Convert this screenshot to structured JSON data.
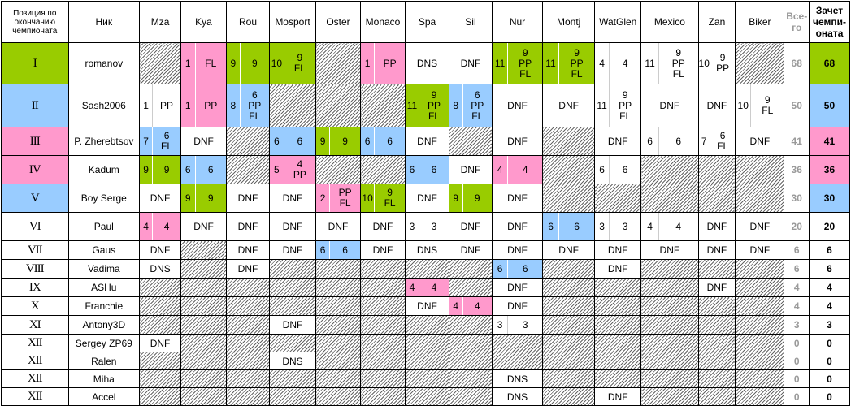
{
  "headers": {
    "position": "Позиция по окончанию чемпионата",
    "nick": "Ник",
    "tracks": [
      "Mza",
      "Kya",
      "Rou",
      "Mosport",
      "Oster",
      "Monaco",
      "Spa",
      "Sil",
      "Nur",
      "Montj",
      "WatGlen",
      "Mexico",
      "Zan",
      "Biker"
    ],
    "total": "Все-го",
    "championship": "Зачет чемпи-оната"
  },
  "colors": {
    "green": "#99cc00",
    "pink": "#ff99cc",
    "blue": "#99ccff",
    "hatch": "#666666"
  },
  "rows": [
    {
      "pos": "I",
      "nick": "romanov",
      "rowColor": "green",
      "total": "68",
      "score": "68",
      "cells": [
        {
          "t": "h"
        },
        {
          "t": "p",
          "a": "1",
          "b": "FL",
          "c": "pink"
        },
        {
          "t": "p",
          "a": "9",
          "b": "9",
          "c": "green"
        },
        {
          "t": "p",
          "a": "10",
          "b": "9\nFL",
          "c": "green"
        },
        {
          "t": "h"
        },
        {
          "t": "p",
          "a": "1",
          "b": "PP",
          "c": "pink"
        },
        {
          "t": "s",
          "v": "DNS"
        },
        {
          "t": "s",
          "v": "DNF"
        },
        {
          "t": "p",
          "a": "11",
          "b": "9\nPP\nFL",
          "c": "green"
        },
        {
          "t": "p",
          "a": "11",
          "b": "9\nPP\nFL",
          "c": "green"
        },
        {
          "t": "p",
          "a": "4",
          "b": "4"
        },
        {
          "t": "p",
          "a": "11",
          "b": "9\nPP\nFL"
        },
        {
          "t": "p",
          "a": "10",
          "b": "9\nPP"
        },
        {
          "t": "h"
        }
      ]
    },
    {
      "pos": "II",
      "nick": "Sash2006",
      "rowColor": "blue",
      "total": "50",
      "score": "50",
      "cells": [
        {
          "t": "p",
          "a": "1",
          "b": "PP"
        },
        {
          "t": "p",
          "a": "1",
          "b": "PP",
          "c": "pink"
        },
        {
          "t": "p",
          "a": "8",
          "b": "6\nPP\nFL",
          "c": "blue"
        },
        {
          "t": "h"
        },
        {
          "t": "h"
        },
        {
          "t": "h"
        },
        {
          "t": "p",
          "a": "11",
          "b": "9\nPP\nFL",
          "c": "green"
        },
        {
          "t": "p",
          "a": "8",
          "b": "6\nPP\nFL",
          "c": "blue"
        },
        {
          "t": "s",
          "v": "DNF"
        },
        {
          "t": "s",
          "v": "DNF"
        },
        {
          "t": "p",
          "a": "11",
          "b": "9\nPP\nFL"
        },
        {
          "t": "s",
          "v": "DNF"
        },
        {
          "t": "s",
          "v": "DNF"
        },
        {
          "t": "p",
          "a": "10",
          "b": "9\nFL"
        }
      ]
    },
    {
      "pos": "III",
      "nick": "P. Zherebtsov",
      "rowColor": "pink",
      "total": "41",
      "score": "41",
      "cells": [
        {
          "t": "p",
          "a": "7",
          "b": "6\nFL",
          "c": "blue"
        },
        {
          "t": "s",
          "v": "DNF"
        },
        {
          "t": "h"
        },
        {
          "t": "p",
          "a": "6",
          "b": "6",
          "c": "blue"
        },
        {
          "t": "p",
          "a": "9",
          "b": "9",
          "c": "green"
        },
        {
          "t": "p",
          "a": "6",
          "b": "6",
          "c": "blue"
        },
        {
          "t": "s",
          "v": "DNF"
        },
        {
          "t": "h"
        },
        {
          "t": "s",
          "v": "DNF"
        },
        {
          "t": "h"
        },
        {
          "t": "s",
          "v": "DNF"
        },
        {
          "t": "p",
          "a": "6",
          "b": "6"
        },
        {
          "t": "p",
          "a": "7",
          "b": "6\nFL"
        },
        {
          "t": "s",
          "v": "DNF"
        }
      ]
    },
    {
      "pos": "IV",
      "nick": "Kadum",
      "rowColor": "pink",
      "total": "36",
      "score": "36",
      "cells": [
        {
          "t": "p",
          "a": "9",
          "b": "9",
          "c": "green"
        },
        {
          "t": "p",
          "a": "6",
          "b": "6",
          "c": "blue"
        },
        {
          "t": "h"
        },
        {
          "t": "p",
          "a": "5",
          "b": "4\nPP",
          "c": "pink"
        },
        {
          "t": "h"
        },
        {
          "t": "h"
        },
        {
          "t": "p",
          "a": "6",
          "b": "6",
          "c": "blue"
        },
        {
          "t": "s",
          "v": "DNF"
        },
        {
          "t": "p",
          "a": "4",
          "b": "4",
          "c": "pink"
        },
        {
          "t": "h"
        },
        {
          "t": "p",
          "a": "6",
          "b": "6"
        },
        {
          "t": "h"
        },
        {
          "t": "h"
        },
        {
          "t": "h"
        }
      ]
    },
    {
      "pos": "V",
      "nick": "Boy Serge",
      "rowColor": "blue",
      "total": "30",
      "score": "30",
      "cells": [
        {
          "t": "s",
          "v": "DNF"
        },
        {
          "t": "p",
          "a": "9",
          "b": "9",
          "c": "green"
        },
        {
          "t": "s",
          "v": "DNF"
        },
        {
          "t": "s",
          "v": "DNF"
        },
        {
          "t": "p",
          "a": "2",
          "b": "PP\nFL",
          "c": "pink"
        },
        {
          "t": "p",
          "a": "10",
          "b": "9\nFL",
          "c": "green"
        },
        {
          "t": "s",
          "v": "DNF"
        },
        {
          "t": "p",
          "a": "9",
          "b": "9",
          "c": "green"
        },
        {
          "t": "s",
          "v": "DNF"
        },
        {
          "t": "h"
        },
        {
          "t": "h"
        },
        {
          "t": "h"
        },
        {
          "t": "h"
        },
        {
          "t": "h"
        }
      ]
    },
    {
      "pos": "VI",
      "nick": "Paul",
      "rowColor": "",
      "total": "20",
      "score": "20",
      "cells": [
        {
          "t": "p",
          "a": "4",
          "b": "4",
          "c": "pink"
        },
        {
          "t": "s",
          "v": "DNF"
        },
        {
          "t": "s",
          "v": "DNF"
        },
        {
          "t": "s",
          "v": "DNF"
        },
        {
          "t": "s",
          "v": "DNF"
        },
        {
          "t": "s",
          "v": "DNF"
        },
        {
          "t": "p",
          "a": "3",
          "b": "3"
        },
        {
          "t": "s",
          "v": "DNF"
        },
        {
          "t": "s",
          "v": "DNF"
        },
        {
          "t": "p",
          "a": "6",
          "b": "6",
          "c": "blue"
        },
        {
          "t": "p",
          "a": "3",
          "b": "3"
        },
        {
          "t": "p",
          "a": "4",
          "b": "4"
        },
        {
          "t": "s",
          "v": "DNF"
        },
        {
          "t": "s",
          "v": "DNF"
        }
      ]
    },
    {
      "pos": "VII",
      "nick": "Gaus",
      "rowColor": "",
      "total": "6",
      "score": "6",
      "cells": [
        {
          "t": "s",
          "v": "DNF"
        },
        {
          "t": "h"
        },
        {
          "t": "s",
          "v": "DNF"
        },
        {
          "t": "s",
          "v": "DNF"
        },
        {
          "t": "p",
          "a": "6",
          "b": "6",
          "c": "blue"
        },
        {
          "t": "s",
          "v": "DNF"
        },
        {
          "t": "s",
          "v": "DNS"
        },
        {
          "t": "s",
          "v": "DNF"
        },
        {
          "t": "s",
          "v": "DNF"
        },
        {
          "t": "s",
          "v": "DNF"
        },
        {
          "t": "s",
          "v": "DNF"
        },
        {
          "t": "s",
          "v": "DNF"
        },
        {
          "t": "s",
          "v": "DNF"
        },
        {
          "t": "s",
          "v": "DNF"
        }
      ]
    },
    {
      "pos": "VIII",
      "nick": "Vadima",
      "rowColor": "",
      "total": "6",
      "score": "6",
      "cells": [
        {
          "t": "s",
          "v": "DNS"
        },
        {
          "t": "h"
        },
        {
          "t": "s",
          "v": "DNF"
        },
        {
          "t": "h"
        },
        {
          "t": "h"
        },
        {
          "t": "h"
        },
        {
          "t": "h"
        },
        {
          "t": "h"
        },
        {
          "t": "p",
          "a": "6",
          "b": "6",
          "c": "blue"
        },
        {
          "t": "h"
        },
        {
          "t": "s",
          "v": "DNF"
        },
        {
          "t": "h"
        },
        {
          "t": "h"
        },
        {
          "t": "h"
        }
      ]
    },
    {
      "pos": "IX",
      "nick": "ASHu",
      "rowColor": "",
      "total": "4",
      "score": "4",
      "cells": [
        {
          "t": "h"
        },
        {
          "t": "h"
        },
        {
          "t": "h"
        },
        {
          "t": "h"
        },
        {
          "t": "h"
        },
        {
          "t": "h"
        },
        {
          "t": "p",
          "a": "4",
          "b": "4",
          "c": "pink"
        },
        {
          "t": "h"
        },
        {
          "t": "s",
          "v": "DNF"
        },
        {
          "t": "h"
        },
        {
          "t": "h"
        },
        {
          "t": "h"
        },
        {
          "t": "s",
          "v": "DNF"
        },
        {
          "t": "h"
        }
      ]
    },
    {
      "pos": "X",
      "nick": "Franchie",
      "rowColor": "",
      "total": "4",
      "score": "4",
      "cells": [
        {
          "t": "h"
        },
        {
          "t": "h"
        },
        {
          "t": "h"
        },
        {
          "t": "h"
        },
        {
          "t": "h"
        },
        {
          "t": "h"
        },
        {
          "t": "s",
          "v": "DNF"
        },
        {
          "t": "p",
          "a": "4",
          "b": "4",
          "c": "pink"
        },
        {
          "t": "s",
          "v": "DNF"
        },
        {
          "t": "h"
        },
        {
          "t": "h"
        },
        {
          "t": "h"
        },
        {
          "t": "h"
        },
        {
          "t": "h"
        }
      ]
    },
    {
      "pos": "XI",
      "nick": "Antony3D",
      "rowColor": "",
      "total": "3",
      "score": "3",
      "cells": [
        {
          "t": "h"
        },
        {
          "t": "h"
        },
        {
          "t": "h"
        },
        {
          "t": "s",
          "v": "DNF"
        },
        {
          "t": "h"
        },
        {
          "t": "h"
        },
        {
          "t": "h"
        },
        {
          "t": "h"
        },
        {
          "t": "p",
          "a": "3",
          "b": "3"
        },
        {
          "t": "h"
        },
        {
          "t": "h"
        },
        {
          "t": "h"
        },
        {
          "t": "h"
        },
        {
          "t": "h"
        }
      ]
    },
    {
      "pos": "XII",
      "nick": "Sergey ZP69",
      "rowColor": "",
      "total": "0",
      "score": "0",
      "cells": [
        {
          "t": "s",
          "v": "DNF"
        },
        {
          "t": "h"
        },
        {
          "t": "h"
        },
        {
          "t": "h"
        },
        {
          "t": "h"
        },
        {
          "t": "h"
        },
        {
          "t": "h"
        },
        {
          "t": "h"
        },
        {
          "t": "h"
        },
        {
          "t": "h"
        },
        {
          "t": "h"
        },
        {
          "t": "h"
        },
        {
          "t": "h"
        },
        {
          "t": "h"
        }
      ]
    },
    {
      "pos": "XII",
      "nick": "Ralen",
      "rowColor": "",
      "total": "0",
      "score": "0",
      "cells": [
        {
          "t": "h"
        },
        {
          "t": "h"
        },
        {
          "t": "h"
        },
        {
          "t": "s",
          "v": "DNS"
        },
        {
          "t": "h"
        },
        {
          "t": "h"
        },
        {
          "t": "h"
        },
        {
          "t": "h"
        },
        {
          "t": "h"
        },
        {
          "t": "h"
        },
        {
          "t": "h"
        },
        {
          "t": "h"
        },
        {
          "t": "h"
        },
        {
          "t": "h"
        }
      ]
    },
    {
      "pos": "XII",
      "nick": "Miha",
      "rowColor": "",
      "total": "0",
      "score": "0",
      "cells": [
        {
          "t": "h"
        },
        {
          "t": "h"
        },
        {
          "t": "h"
        },
        {
          "t": "h"
        },
        {
          "t": "h"
        },
        {
          "t": "h"
        },
        {
          "t": "h"
        },
        {
          "t": "h"
        },
        {
          "t": "s",
          "v": "DNS"
        },
        {
          "t": "h"
        },
        {
          "t": "h"
        },
        {
          "t": "h"
        },
        {
          "t": "h"
        },
        {
          "t": "h"
        }
      ]
    },
    {
      "pos": "XII",
      "nick": "Accel",
      "rowColor": "",
      "total": "0",
      "score": "0",
      "cells": [
        {
          "t": "h"
        },
        {
          "t": "h"
        },
        {
          "t": "h"
        },
        {
          "t": "h"
        },
        {
          "t": "h"
        },
        {
          "t": "h"
        },
        {
          "t": "h"
        },
        {
          "t": "h"
        },
        {
          "t": "s",
          "v": "DNS"
        },
        {
          "t": "h"
        },
        {
          "t": "s",
          "v": "DNF"
        },
        {
          "t": "h"
        },
        {
          "t": "h"
        },
        {
          "t": "h"
        }
      ]
    }
  ]
}
